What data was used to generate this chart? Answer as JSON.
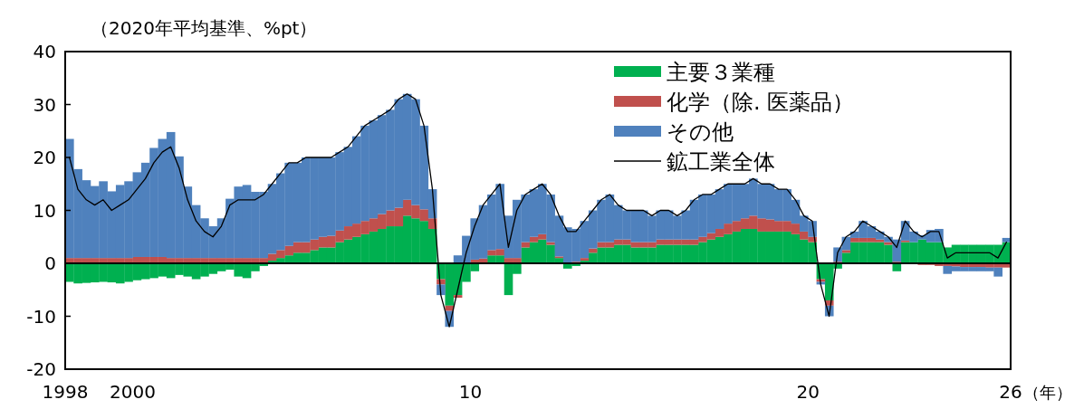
{
  "chart_data": {
    "type": "bar",
    "stacked": true,
    "ylabel": "（2020年平均基準、%pt）",
    "xlabel": "（年）",
    "legend": "top right",
    "xlim": [
      1998,
      2026
    ],
    "xticks": [
      1998,
      2000,
      {
        "value": 2010,
        "label": "10"
      },
      {
        "value": 2020,
        "label": "20"
      },
      {
        "value": 2026,
        "label": "26"
      }
    ],
    "ylim": [
      -20,
      40
    ],
    "yticks": [
      -20,
      -10,
      0,
      10,
      20,
      30,
      40
    ],
    "x": [
      1998.125,
      1998.375,
      1998.625,
      1998.875,
      1999.125,
      1999.375,
      1999.625,
      1999.875,
      2000.125,
      2000.375,
      2000.625,
      2000.875,
      2001.125,
      2001.375,
      2001.625,
      2001.875,
      2002.125,
      2002.375,
      2002.625,
      2002.875,
      2003.125,
      2003.375,
      2003.625,
      2003.875,
      2004.125,
      2004.375,
      2004.625,
      2004.875,
      2005.125,
      2005.375,
      2005.625,
      2005.875,
      2006.125,
      2006.375,
      2006.625,
      2006.875,
      2007.125,
      2007.375,
      2007.625,
      2007.875,
      2008.125,
      2008.375,
      2008.625,
      2008.875,
      2009.125,
      2009.375,
      2009.625,
      2009.875,
      2010.125,
      2010.375,
      2010.625,
      2010.875,
      2011.125,
      2011.375,
      2011.625,
      2011.875,
      2012.125,
      2012.375,
      2012.625,
      2012.875,
      2013.125,
      2013.375,
      2013.625,
      2013.875,
      2014.125,
      2014.375,
      2014.625,
      2014.875,
      2015.125,
      2015.375,
      2015.625,
      2015.875,
      2016.125,
      2016.375,
      2016.625,
      2016.875,
      2017.125,
      2017.375,
      2017.625,
      2017.875,
      2018.125,
      2018.375,
      2018.625,
      2018.875,
      2019.125,
      2019.375,
      2019.625,
      2019.875,
      2020.125,
      2020.375,
      2020.625,
      2020.875,
      2021.125,
      2021.375,
      2021.625,
      2021.875,
      2022.125,
      2022.375,
      2022.625,
      2022.875,
      2023.125,
      2023.375,
      2023.625,
      2023.875,
      2024.125,
      2024.375,
      2024.625,
      2024.875,
      2025.125,
      2025.375,
      2025.625,
      2025.875
    ],
    "series": [
      {
        "name": "主要３業種",
        "color": "#00b050",
        "values": [
          -3.5,
          -3.8,
          -3.7,
          -3.6,
          -3.5,
          -3.6,
          -3.8,
          -3.5,
          -3.2,
          -3,
          -2.8,
          -2.5,
          -2.8,
          -2.2,
          -2.5,
          -3,
          -2.5,
          -2,
          -1.5,
          -1.2,
          -2.5,
          -2.8,
          -1.5,
          -0.5,
          0.5,
          1,
          1.5,
          2,
          2,
          2.5,
          3,
          3,
          4,
          4.5,
          5,
          5.5,
          6,
          6.5,
          7,
          7,
          9,
          8.5,
          8,
          6.5,
          -3,
          -8,
          -6,
          -3.5,
          -1.5,
          0,
          1.5,
          1.5,
          -6,
          -2,
          3,
          4,
          4.5,
          3.5,
          1,
          -1,
          -0.5,
          0.5,
          2,
          3,
          3,
          3.5,
          3.5,
          3,
          3,
          3,
          3.5,
          3.5,
          3.5,
          3.5,
          3.5,
          4,
          4.5,
          5,
          5.5,
          6,
          6.5,
          6.5,
          6,
          6,
          6,
          6,
          5.5,
          4.5,
          4,
          -3,
          -7,
          -1,
          2,
          4,
          4,
          4,
          4,
          3.5,
          -1.5,
          4,
          4,
          4.5,
          4,
          4,
          3,
          3.5,
          3.5,
          3.5,
          3.5,
          3.5,
          3.5,
          4
        ]
      },
      {
        "name": "化学（除. 医薬品）",
        "color": "#c0504d",
        "values": [
          1,
          1,
          1,
          1,
          1,
          1,
          1,
          1,
          1.2,
          1.2,
          1.2,
          1.2,
          1,
          1,
          1,
          1,
          1,
          1,
          1,
          1,
          1,
          1,
          1,
          1,
          1.3,
          1.5,
          1.8,
          2,
          2,
          2,
          2,
          2.2,
          2.2,
          2.5,
          2.5,
          2.5,
          2.5,
          2.8,
          3,
          3.5,
          3,
          2.5,
          2.2,
          2,
          -1,
          -1,
          -0.5,
          null,
          0.7,
          0.9,
          1,
          1.2,
          1,
          1,
          1,
          1,
          1,
          0.5,
          0.3,
          null,
          0.3,
          0.5,
          0.8,
          1,
          1,
          1,
          1,
          1,
          1,
          1,
          1,
          1,
          1,
          1,
          1,
          1,
          1.2,
          1.5,
          2,
          2,
          2,
          2.5,
          2.5,
          2.3,
          2,
          2,
          2,
          1.5,
          1,
          -0.5,
          -1,
          0.3,
          0.5,
          0.8,
          0.8,
          0.8,
          0.5,
          0.5,
          0.3,
          0.3,
          0,
          -0.3,
          -0.3,
          -0.5,
          -0.5,
          -0.6,
          -0.7,
          -0.7,
          -0.7,
          -0.8,
          -0.8,
          -0.8
        ]
      },
      {
        "name": "その他",
        "color": "#4f81bd",
        "values": [
          22.5,
          16.8,
          14.7,
          13.6,
          14.5,
          12.6,
          13.8,
          14.5,
          16,
          17.8,
          20.6,
          22.3,
          23.8,
          19.2,
          13.5,
          10,
          7.5,
          6,
          7.5,
          11.2,
          13.5,
          13.8,
          12.5,
          12.5,
          13.2,
          14.5,
          15.7,
          15,
          16,
          15.5,
          15,
          14.8,
          14.8,
          15,
          16.5,
          18,
          18.5,
          18.7,
          19,
          20.5,
          20,
          20,
          15.8,
          5.5,
          -2,
          -3,
          1.5,
          5.2,
          7.8,
          10.1,
          10.5,
          12.3,
          8,
          11,
          9,
          9,
          9.5,
          9,
          7.7,
          6.8,
          6.2,
          7,
          7.2,
          8,
          9,
          6.5,
          5.5,
          6,
          6,
          5,
          5.5,
          5.5,
          4.5,
          5.5,
          7.5,
          8,
          7.3,
          7.5,
          7.5,
          7,
          6.5,
          7,
          6.5,
          6.7,
          6,
          6,
          4.5,
          3,
          3,
          -0.5,
          -2,
          2.7,
          2.5,
          1.2,
          3.2,
          2.2,
          1.5,
          1,
          4.2,
          3.7,
          2,
          0.8,
          2.3,
          2.5,
          -1.5,
          -0.9,
          -0.8,
          -0.8,
          -0.8,
          -0.7,
          -1.7,
          0.8
        ]
      },
      {
        "name": "鉱工業全体",
        "type": "line",
        "color": "#000000",
        "values": [
          20,
          14,
          12,
          11,
          12,
          10,
          11,
          12,
          14,
          16,
          19,
          21,
          22,
          18,
          12,
          8,
          6,
          5,
          7,
          11,
          12,
          12,
          12,
          13,
          15,
          17,
          19,
          19,
          20,
          20,
          20,
          20,
          21,
          22,
          24,
          26,
          27,
          28,
          29,
          31,
          32,
          31,
          26,
          14,
          -6,
          -12,
          -5,
          2,
          7,
          11,
          13,
          15,
          3,
          10,
          13,
          14,
          15,
          13,
          9,
          6,
          6,
          8,
          10,
          12,
          13,
          11,
          10,
          10,
          10,
          9,
          10,
          10,
          9,
          10,
          12,
          13,
          13,
          14,
          15,
          15,
          15,
          16,
          15,
          15,
          14,
          14,
          12,
          9,
          8,
          -4,
          -10,
          2,
          5,
          6,
          8,
          7,
          6,
          5,
          3,
          8,
          6,
          5,
          6,
          6,
          1,
          2,
          2,
          2,
          2,
          2,
          1,
          4
        ]
      }
    ]
  }
}
